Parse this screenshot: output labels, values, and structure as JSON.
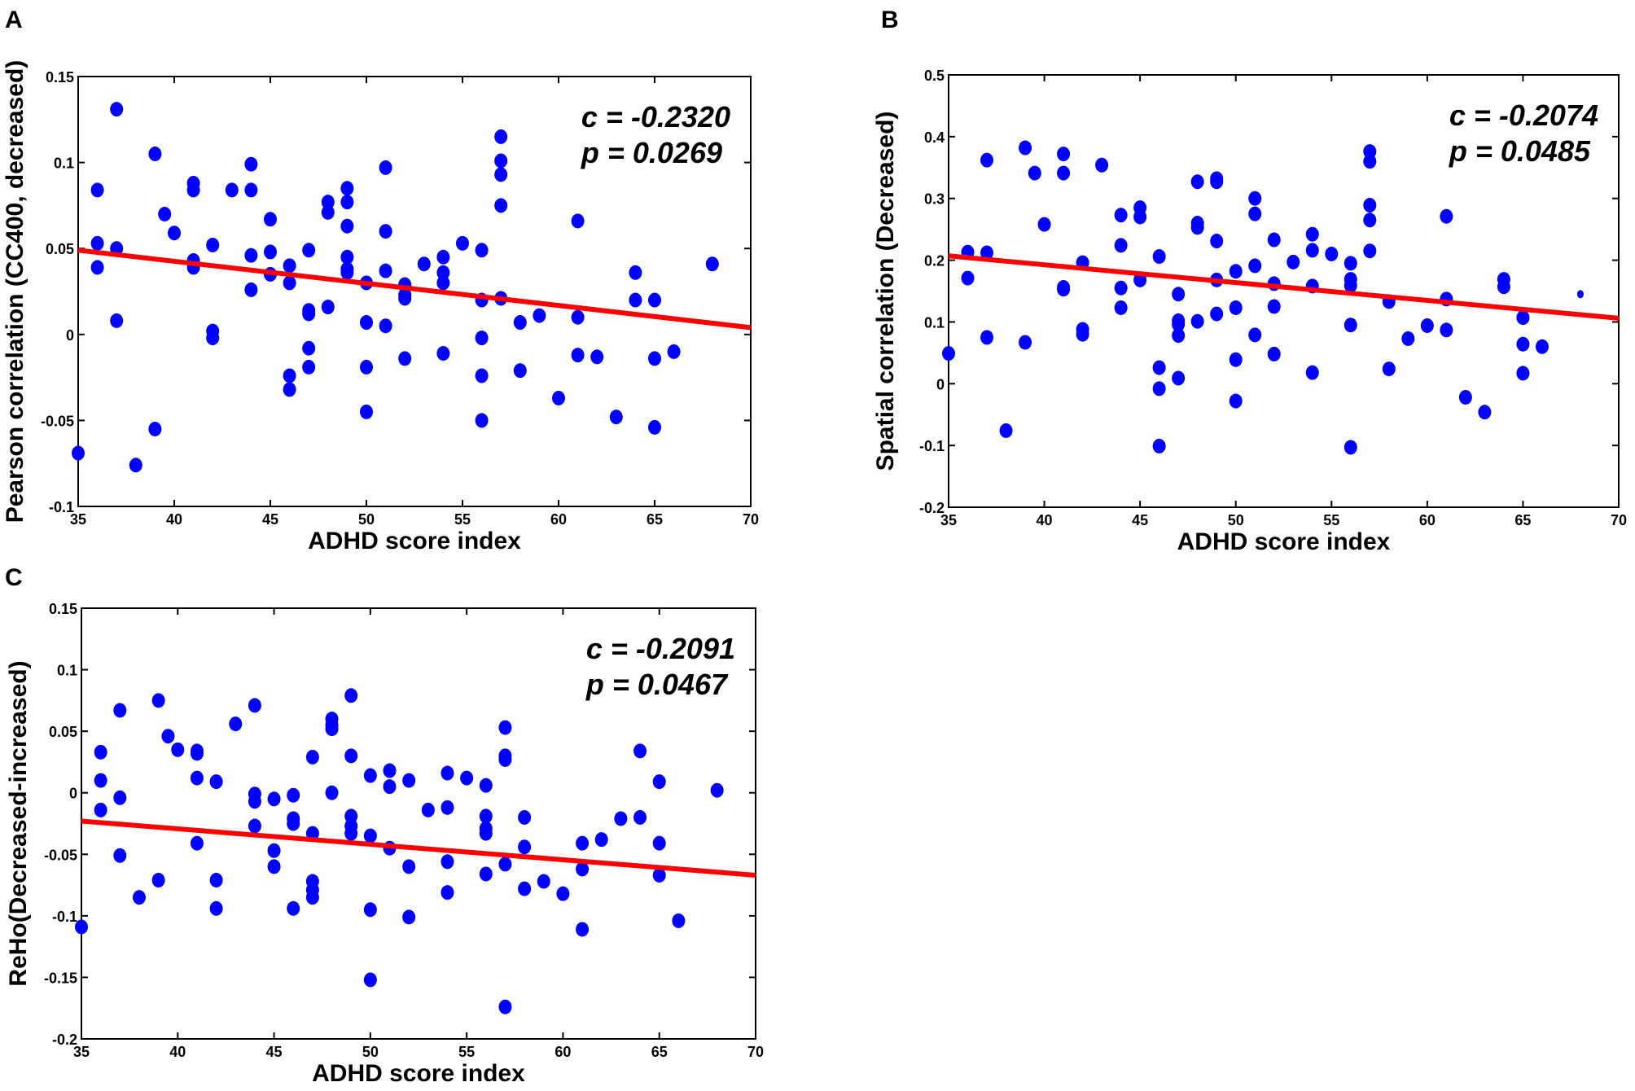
{
  "colors": {
    "points": "#0000ff",
    "fit_line": "#ff0000",
    "axes": "#000000"
  },
  "chart_data": [
    {
      "type": "scatter",
      "panel_label": "A",
      "xlabel": "ADHD score index",
      "ylabel": "Pearson correlation (CC400, decreased)",
      "xlim": [
        35,
        70
      ],
      "ylim": [
        -0.1,
        0.15
      ],
      "xticks": [
        "35",
        "40",
        "45",
        "50",
        "55",
        "60",
        "65",
        "70"
      ],
      "yticks": [
        "-0.1",
        "-0.05",
        "0",
        "0.05",
        "0.1",
        "0.15"
      ],
      "annotation": [
        "c = -0.2320",
        "p = 0.0269"
      ],
      "fit_line": [
        [
          35,
          0.049
        ],
        [
          70,
          0.004
        ]
      ],
      "points": [
        [
          35,
          -0.069
        ],
        [
          36,
          0.084
        ],
        [
          36,
          0.053
        ],
        [
          36,
          0.039
        ],
        [
          37,
          0.131
        ],
        [
          37,
          0.05
        ],
        [
          37,
          0.008
        ],
        [
          38,
          -0.076
        ],
        [
          39,
          0.105
        ],
        [
          39,
          -0.055
        ],
        [
          39.5,
          0.07
        ],
        [
          40,
          0.059
        ],
        [
          41,
          0.088
        ],
        [
          41,
          0.084
        ],
        [
          41,
          0.043
        ],
        [
          41,
          0.039
        ],
        [
          42,
          0.052
        ],
        [
          42,
          0.002
        ],
        [
          42,
          -0.002
        ],
        [
          43,
          0.084
        ],
        [
          44,
          0.099
        ],
        [
          44,
          0.084
        ],
        [
          44,
          0.046
        ],
        [
          44,
          0.026
        ],
        [
          45,
          0.067
        ],
        [
          45,
          0.048
        ],
        [
          45,
          0.035
        ],
        [
          46,
          0.04
        ],
        [
          46,
          0.03
        ],
        [
          46,
          -0.024
        ],
        [
          46,
          -0.032
        ],
        [
          47,
          0.049
        ],
        [
          47,
          0.014
        ],
        [
          47,
          0.012
        ],
        [
          47,
          -0.008
        ],
        [
          47,
          -0.019
        ],
        [
          48,
          0.077
        ],
        [
          48,
          0.071
        ],
        [
          48,
          0.016
        ],
        [
          49,
          0.085
        ],
        [
          49,
          0.077
        ],
        [
          49,
          0.063
        ],
        [
          49,
          0.045
        ],
        [
          49,
          0.038
        ],
        [
          49,
          0.036
        ],
        [
          50,
          0.03
        ],
        [
          50,
          0.007
        ],
        [
          50,
          -0.019
        ],
        [
          50,
          -0.045
        ],
        [
          51,
          0.097
        ],
        [
          51,
          0.06
        ],
        [
          51,
          0.037
        ],
        [
          51,
          0.005
        ],
        [
          52,
          0.029
        ],
        [
          52,
          0.023
        ],
        [
          52,
          0.021
        ],
        [
          52,
          -0.014
        ],
        [
          53,
          0.041
        ],
        [
          54,
          0.045
        ],
        [
          54,
          0.036
        ],
        [
          54,
          0.03
        ],
        [
          54,
          -0.011
        ],
        [
          55,
          0.053
        ],
        [
          56,
          0.049
        ],
        [
          56,
          0.02
        ],
        [
          56,
          -0.002
        ],
        [
          56,
          -0.024
        ],
        [
          56,
          -0.05
        ],
        [
          57,
          0.115
        ],
        [
          57,
          0.101
        ],
        [
          57,
          0.093
        ],
        [
          57,
          0.075
        ],
        [
          57,
          0.021
        ],
        [
          58,
          0.007
        ],
        [
          58,
          -0.021
        ],
        [
          59,
          0.011
        ],
        [
          60,
          -0.037
        ],
        [
          61,
          0.066
        ],
        [
          61,
          0.01
        ],
        [
          61,
          -0.012
        ],
        [
          62,
          -0.013
        ],
        [
          63,
          -0.048
        ],
        [
          64,
          0.036
        ],
        [
          64,
          0.02
        ],
        [
          65,
          0.02
        ],
        [
          65,
          -0.014
        ],
        [
          65,
          -0.054
        ],
        [
          66,
          -0.01
        ],
        [
          68,
          0.041
        ]
      ]
    },
    {
      "type": "scatter",
      "panel_label": "B",
      "xlabel": "ADHD score index",
      "ylabel": "Spatial correlation (Decreased)",
      "xlim": [
        35,
        70
      ],
      "ylim": [
        -0.2,
        0.5
      ],
      "xticks": [
        "35",
        "40",
        "45",
        "50",
        "55",
        "60",
        "65",
        "70"
      ],
      "yticks": [
        "-0.2",
        "-0.1",
        "0",
        "0.1",
        "0.2",
        "0.3",
        "0.4",
        "0.5"
      ],
      "annotation": [
        "c = -0.2074",
        "p = 0.0485"
      ],
      "fit_line": [
        [
          35,
          0.207
        ],
        [
          70,
          0.106
        ]
      ],
      "points": [
        [
          35,
          0.049
        ],
        [
          36,
          0.213
        ],
        [
          36,
          0.171
        ],
        [
          37,
          0.362
        ],
        [
          37,
          0.212
        ],
        [
          37,
          0.075
        ],
        [
          38,
          -0.076
        ],
        [
          39,
          0.382
        ],
        [
          39,
          0.067
        ],
        [
          39.5,
          0.341
        ],
        [
          40,
          0.258
        ],
        [
          41,
          0.372
        ],
        [
          41,
          0.341
        ],
        [
          41,
          0.156
        ],
        [
          41,
          0.153
        ],
        [
          42,
          0.196
        ],
        [
          42,
          0.088
        ],
        [
          42,
          0.08
        ],
        [
          43,
          0.354
        ],
        [
          44,
          0.273
        ],
        [
          44,
          0.224
        ],
        [
          44,
          0.155
        ],
        [
          44,
          0.123
        ],
        [
          45,
          0.285
        ],
        [
          45,
          0.27
        ],
        [
          45,
          0.168
        ],
        [
          46,
          0.206
        ],
        [
          46,
          0.026
        ],
        [
          46,
          -0.008
        ],
        [
          46,
          -0.101
        ],
        [
          47,
          0.145
        ],
        [
          47,
          0.102
        ],
        [
          47,
          0.096
        ],
        [
          47,
          0.078
        ],
        [
          47,
          0.009
        ],
        [
          48,
          0.327
        ],
        [
          48,
          0.26
        ],
        [
          48,
          0.253
        ],
        [
          48,
          0.101
        ],
        [
          49,
          0.332
        ],
        [
          49,
          0.327
        ],
        [
          49,
          0.231
        ],
        [
          49,
          0.168
        ],
        [
          49,
          0.113
        ],
        [
          50,
          0.182
        ],
        [
          50,
          0.123
        ],
        [
          50,
          0.039
        ],
        [
          50,
          -0.028
        ],
        [
          51,
          0.3
        ],
        [
          51,
          0.275
        ],
        [
          51,
          0.191
        ],
        [
          51,
          0.079
        ],
        [
          52,
          0.233
        ],
        [
          52,
          0.162
        ],
        [
          52,
          0.125
        ],
        [
          52,
          0.048
        ],
        [
          53,
          0.197
        ],
        [
          54,
          0.242
        ],
        [
          54,
          0.216
        ],
        [
          54,
          0.158
        ],
        [
          54,
          0.018
        ],
        [
          55,
          0.21
        ],
        [
          56,
          0.195
        ],
        [
          56,
          0.169
        ],
        [
          56,
          0.159
        ],
        [
          56,
          0.095
        ],
        [
          56,
          -0.103
        ],
        [
          57,
          0.376
        ],
        [
          57,
          0.36
        ],
        [
          57,
          0.289
        ],
        [
          57,
          0.265
        ],
        [
          57,
          0.215
        ],
        [
          58,
          0.133
        ],
        [
          58,
          0.024
        ],
        [
          59,
          0.073
        ],
        [
          60,
          0.094
        ],
        [
          61,
          0.271
        ],
        [
          61,
          0.137
        ],
        [
          61,
          0.087
        ],
        [
          62,
          -0.022
        ],
        [
          63,
          -0.046
        ],
        [
          64,
          0.169
        ],
        [
          64,
          0.157
        ],
        [
          65,
          0.107
        ],
        [
          65,
          0.064
        ],
        [
          65,
          0.017
        ],
        [
          66,
          0.06
        ],
        [
          68,
          0.145
        ]
      ]
    },
    {
      "type": "scatter",
      "panel_label": "C",
      "xlabel": "ADHD score index",
      "ylabel": "ReHo(Decreased-increased)",
      "xlim": [
        35,
        70
      ],
      "ylim": [
        -0.2,
        0.15
      ],
      "xticks": [
        "35",
        "40",
        "45",
        "50",
        "55",
        "60",
        "65",
        "70"
      ],
      "yticks": [
        "-0.2",
        "-0.15",
        "-0.1",
        "-0.05",
        "0",
        "0.05",
        "0.1",
        "0.15"
      ],
      "annotation": [
        "c = -0.2091",
        "p = 0.0467"
      ],
      "fit_line": [
        [
          35,
          -0.023
        ],
        [
          70,
          -0.067
        ]
      ],
      "points": [
        [
          35,
          -0.109
        ],
        [
          36,
          0.033
        ],
        [
          36,
          0.01
        ],
        [
          36,
          -0.014
        ],
        [
          37,
          0.067
        ],
        [
          37,
          -0.004
        ],
        [
          37,
          -0.051
        ],
        [
          38,
          -0.085
        ],
        [
          39,
          0.075
        ],
        [
          39,
          -0.071
        ],
        [
          39.5,
          0.046
        ],
        [
          40,
          0.035
        ],
        [
          41,
          0.034
        ],
        [
          41,
          0.032
        ],
        [
          41,
          0.012
        ],
        [
          41,
          -0.041
        ],
        [
          42,
          0.009
        ],
        [
          42,
          -0.071
        ],
        [
          42,
          -0.094
        ],
        [
          43,
          0.056
        ],
        [
          44,
          0.071
        ],
        [
          44,
          -0.001
        ],
        [
          44,
          -0.007
        ],
        [
          44,
          -0.027
        ],
        [
          45,
          -0.005
        ],
        [
          45,
          -0.047
        ],
        [
          45,
          -0.06
        ],
        [
          46,
          -0.002
        ],
        [
          46,
          -0.021
        ],
        [
          46,
          -0.025
        ],
        [
          46,
          -0.094
        ],
        [
          47,
          0.029
        ],
        [
          47,
          -0.033
        ],
        [
          47,
          -0.072
        ],
        [
          47,
          -0.079
        ],
        [
          47,
          -0.085
        ],
        [
          48,
          0.06
        ],
        [
          48,
          0.055
        ],
        [
          48,
          0.052
        ],
        [
          48,
          0.0
        ],
        [
          49,
          0.079
        ],
        [
          49,
          0.03
        ],
        [
          49,
          -0.019
        ],
        [
          49,
          -0.027
        ],
        [
          49,
          -0.033
        ],
        [
          50,
          0.014
        ],
        [
          50,
          -0.035
        ],
        [
          50,
          -0.095
        ],
        [
          50,
          -0.152
        ],
        [
          51,
          0.018
        ],
        [
          51,
          0.005
        ],
        [
          51,
          -0.045
        ],
        [
          52,
          0.01
        ],
        [
          52,
          -0.06
        ],
        [
          52,
          -0.101
        ],
        [
          53,
          -0.014
        ],
        [
          54,
          0.016
        ],
        [
          54,
          -0.012
        ],
        [
          54,
          -0.056
        ],
        [
          54,
          -0.081
        ],
        [
          55,
          0.012
        ],
        [
          56,
          0.006
        ],
        [
          56,
          -0.019
        ],
        [
          56,
          -0.029
        ],
        [
          56,
          -0.033
        ],
        [
          56,
          -0.066
        ],
        [
          57,
          0.053
        ],
        [
          57,
          0.03
        ],
        [
          57,
          0.027
        ],
        [
          57,
          -0.058
        ],
        [
          57,
          -0.174
        ],
        [
          58,
          -0.02
        ],
        [
          58,
          -0.044
        ],
        [
          58,
          -0.078
        ],
        [
          59,
          -0.072
        ],
        [
          60,
          -0.082
        ],
        [
          61,
          -0.041
        ],
        [
          61,
          -0.062
        ],
        [
          61,
          -0.111
        ],
        [
          62,
          -0.038
        ],
        [
          63,
          -0.021
        ],
        [
          64,
          0.034
        ],
        [
          64,
          -0.02
        ],
        [
          65,
          0.009
        ],
        [
          65,
          -0.041
        ],
        [
          65,
          -0.067
        ],
        [
          66,
          -0.104
        ],
        [
          68,
          0.002
        ]
      ]
    }
  ]
}
